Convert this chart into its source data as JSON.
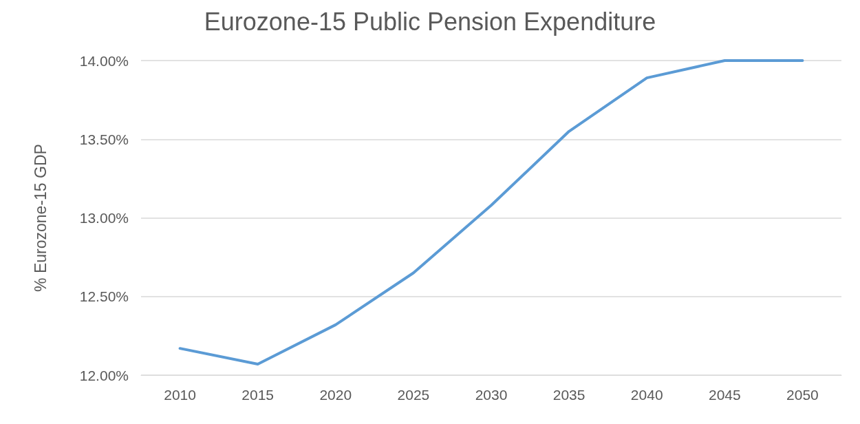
{
  "chart_data": {
    "type": "line",
    "title": "Eurozone-15 Public Pension Expenditure",
    "ylabel": "% Eurozone-15 GDP",
    "categories": [
      "2010",
      "2015",
      "2020",
      "2025",
      "2030",
      "2035",
      "2040",
      "2045",
      "2050"
    ],
    "series": [
      {
        "color": "#5b9bd5",
        "values": [
          12.17,
          12.07,
          12.32,
          12.65,
          13.08,
          13.55,
          13.89,
          14.0,
          14.0
        ]
      }
    ],
    "ylim": [
      12,
      14
    ],
    "yticks": [
      {
        "value": 12,
        "label": "12.00%"
      },
      {
        "value": 12.5,
        "label": "12.50%"
      },
      {
        "value": 13,
        "label": "13.00%"
      },
      {
        "value": 13.5,
        "label": "13.50%"
      },
      {
        "value": 14,
        "label": "14.00%"
      }
    ],
    "grid": "y",
    "marker": "none",
    "line_style": "solid"
  }
}
